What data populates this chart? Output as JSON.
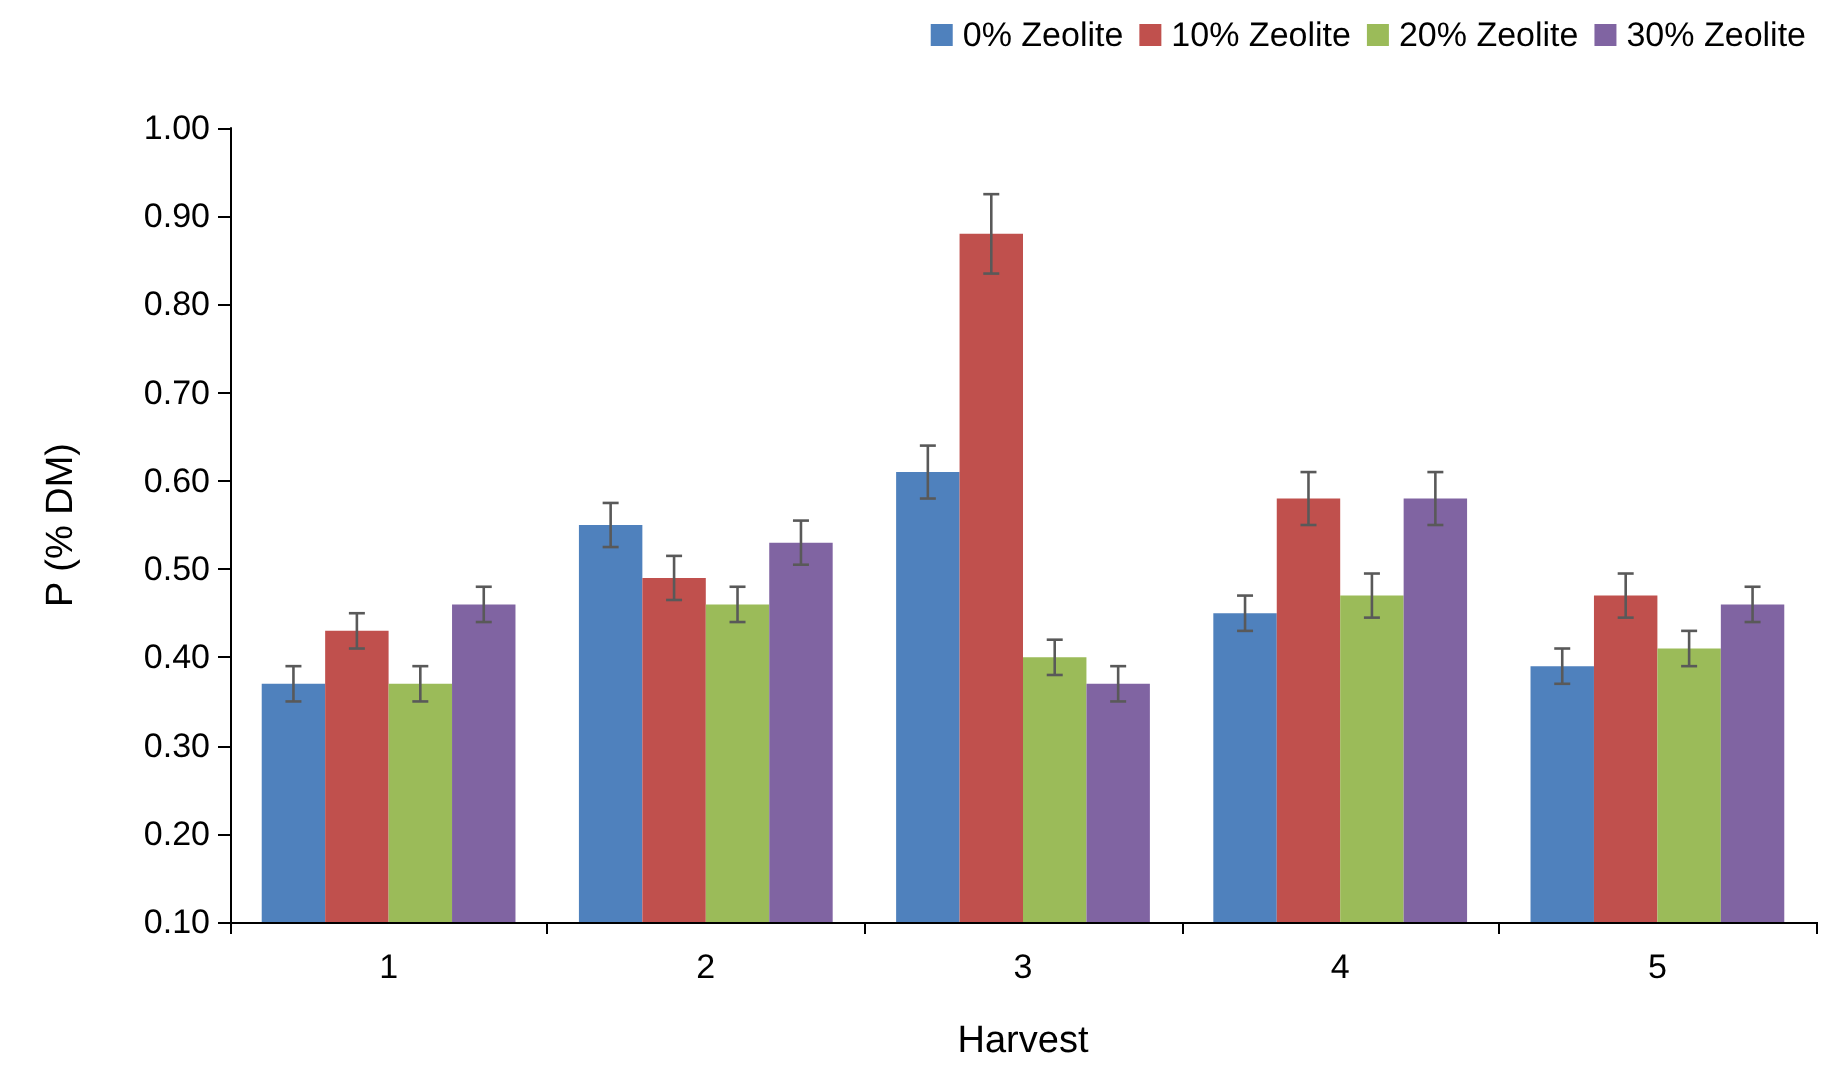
{
  "chart_data": {
    "type": "bar",
    "xlabel": "Harvest",
    "ylabel": "P (% DM)",
    "categories": [
      "1",
      "2",
      "3",
      "4",
      "5"
    ],
    "series": [
      {
        "name": "0% Zeolite",
        "color": "#4f81bd",
        "values": [
          0.37,
          0.55,
          0.61,
          0.45,
          0.39
        ],
        "errors": [
          0.02,
          0.025,
          0.03,
          0.02,
          0.02
        ]
      },
      {
        "name": "10% Zeolite",
        "color": "#c0504d",
        "values": [
          0.43,
          0.49,
          0.88,
          0.58,
          0.47
        ],
        "errors": [
          0.02,
          0.025,
          0.045,
          0.03,
          0.025
        ]
      },
      {
        "name": "20% Zeolite",
        "color": "#9bbb59",
        "values": [
          0.37,
          0.46,
          0.4,
          0.47,
          0.41
        ],
        "errors": [
          0.02,
          0.02,
          0.02,
          0.025,
          0.02
        ]
      },
      {
        "name": "30% Zeolite",
        "color": "#8064a2",
        "values": [
          0.46,
          0.53,
          0.37,
          0.58,
          0.46
        ],
        "errors": [
          0.02,
          0.025,
          0.02,
          0.03,
          0.02
        ]
      }
    ],
    "ylim": [
      0.1,
      1.0
    ],
    "yticks": [
      {
        "value": 0.1,
        "label": "0.10"
      },
      {
        "value": 0.2,
        "label": "0.20"
      },
      {
        "value": 0.3,
        "label": "0.30"
      },
      {
        "value": 0.4,
        "label": "0.40"
      },
      {
        "value": 0.5,
        "label": "0.50"
      },
      {
        "value": 0.6,
        "label": "0.60"
      },
      {
        "value": 0.7,
        "label": "0.70"
      },
      {
        "value": 0.8,
        "label": "0.80"
      },
      {
        "value": 0.9,
        "label": "0.90"
      },
      {
        "value": 1.0,
        "label": "1.00"
      }
    ],
    "grid": false,
    "legend": "top right"
  }
}
